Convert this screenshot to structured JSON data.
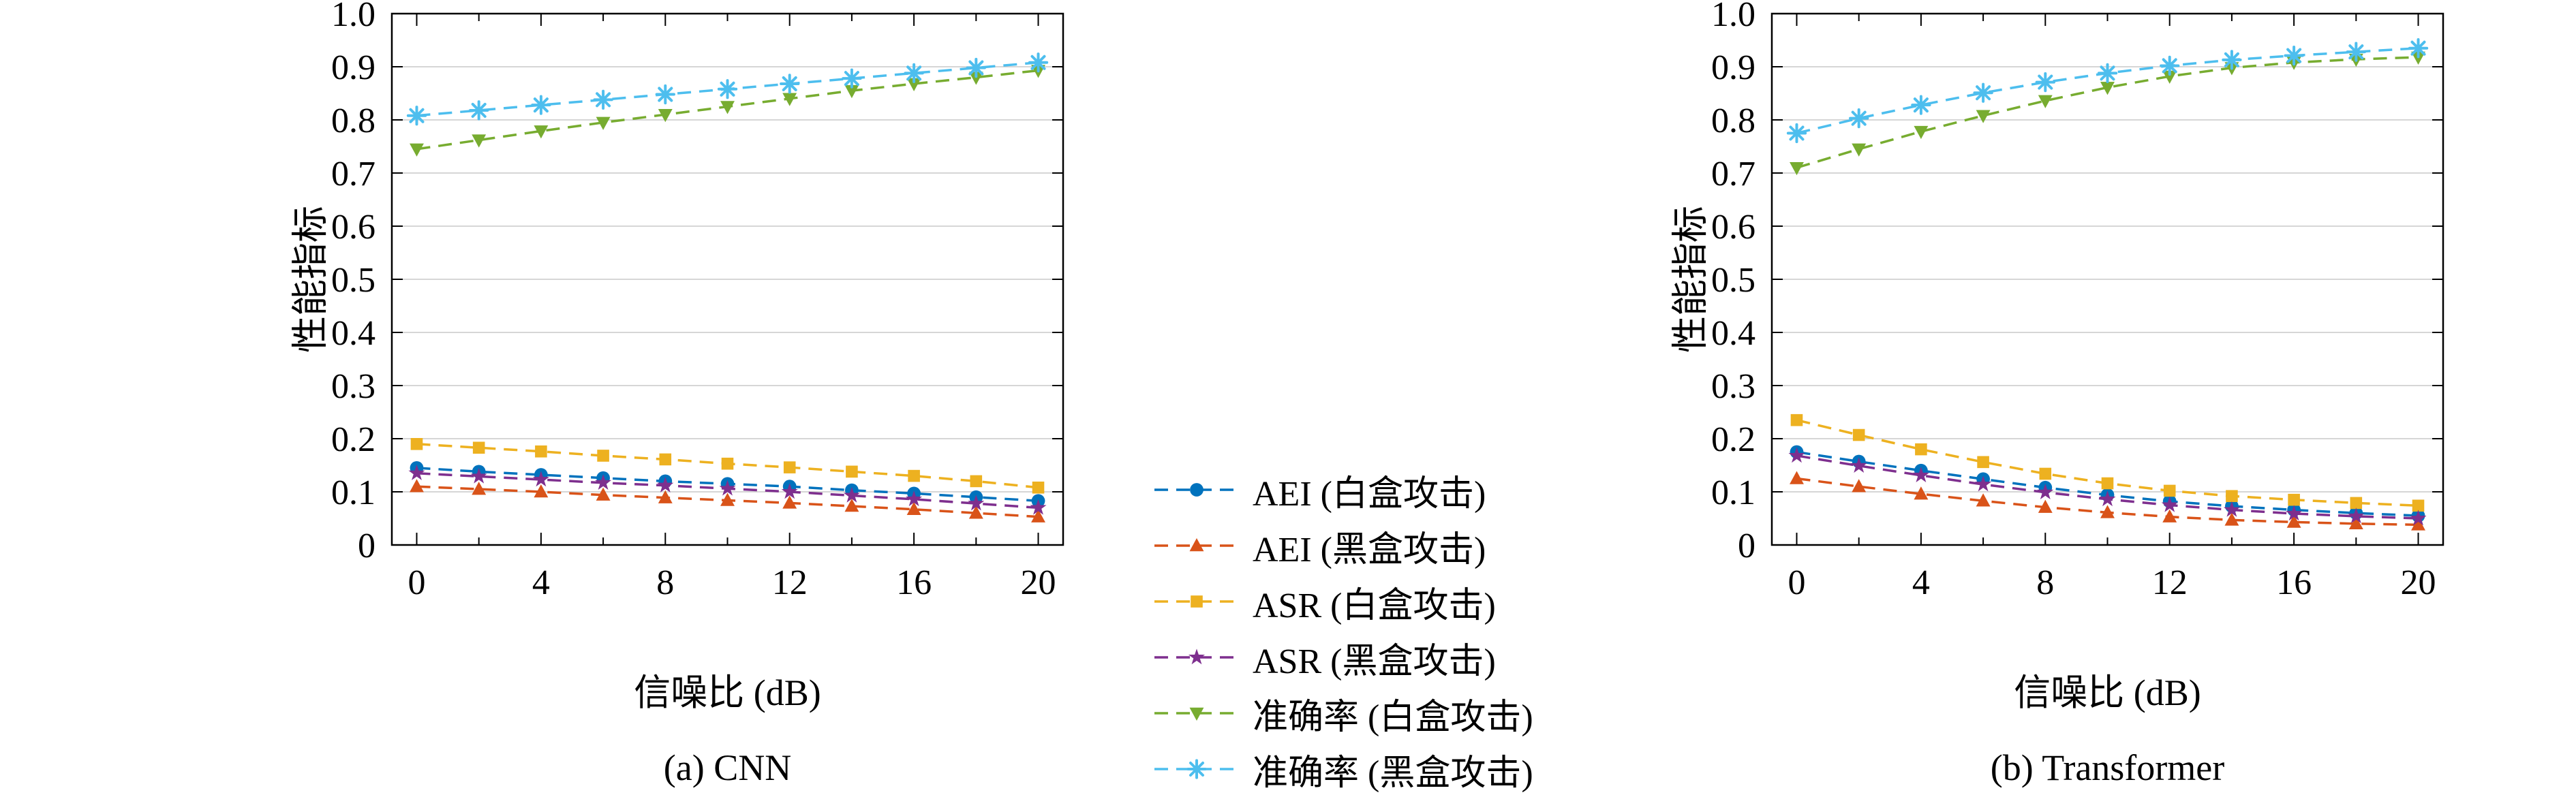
{
  "figure": {
    "ylabel": "性能指标",
    "xlabel": "信噪比 (dB)",
    "y_tick_labels": [
      "0",
      "0.1",
      "0.2",
      "0.3",
      "0.4",
      "0.5",
      "0.6",
      "0.7",
      "0.8",
      "0.9",
      "1.0"
    ],
    "x_tick_values": [
      0,
      4,
      8,
      12,
      16,
      20
    ],
    "x_minor_tick_values": [
      0,
      2,
      4,
      6,
      8,
      10,
      12,
      14,
      16,
      18,
      20
    ],
    "x_range": [
      -0.8,
      20.8
    ],
    "y_range": [
      0,
      1.0
    ],
    "grid_color": "#c8c8c8",
    "axis_color": "#000000"
  },
  "legend": {
    "items": [
      {
        "label": "AEI (白盒攻击)",
        "color": "#0072BD",
        "marker": "circle"
      },
      {
        "label": "AEI (黑盒攻击)",
        "color": "#D95319",
        "marker": "triangle-up"
      },
      {
        "label": "ASR (白盒攻击)",
        "color": "#EDB120",
        "marker": "square"
      },
      {
        "label": "ASR (黑盒攻击)",
        "color": "#7E2F8E",
        "marker": "star"
      },
      {
        "label": "准确率 (白盒攻击)",
        "color": "#77AC30",
        "marker": "triangle-down"
      },
      {
        "label": "准确率 (黑盒攻击)",
        "color": "#4DBEEE",
        "marker": "asterisk"
      }
    ]
  },
  "chart_data": [
    {
      "type": "line",
      "id": "a",
      "title": "(a) CNN",
      "xlabel": "信噪比 (dB)",
      "ylabel": "性能指标",
      "x_range": [
        0,
        20
      ],
      "y_range": [
        0,
        1.0
      ],
      "grid": "horizontal",
      "x": [
        0,
        2,
        4,
        6,
        8,
        10,
        12,
        14,
        16,
        18,
        20
      ],
      "series": [
        {
          "name": "AEI (白盒攻击)",
          "color": "#0072BD",
          "marker": "circle",
          "values": [
            0.145,
            0.138,
            0.132,
            0.126,
            0.12,
            0.115,
            0.11,
            0.103,
            0.097,
            0.09,
            0.083
          ]
        },
        {
          "name": "AEI (黑盒攻击)",
          "color": "#D95319",
          "marker": "triangle-up",
          "values": [
            0.11,
            0.105,
            0.1,
            0.094,
            0.089,
            0.084,
            0.079,
            0.073,
            0.067,
            0.06,
            0.053
          ]
        },
        {
          "name": "ASR (白盒攻击)",
          "color": "#EDB120",
          "marker": "square",
          "values": [
            0.19,
            0.183,
            0.176,
            0.168,
            0.161,
            0.153,
            0.146,
            0.138,
            0.13,
            0.12,
            0.108
          ]
        },
        {
          "name": "ASR (黑盒攻击)",
          "color": "#7E2F8E",
          "marker": "star",
          "values": [
            0.135,
            0.129,
            0.123,
            0.117,
            0.112,
            0.106,
            0.1,
            0.093,
            0.086,
            0.078,
            0.07
          ]
        },
        {
          "name": "准确率 (白盒攻击)",
          "color": "#77AC30",
          "marker": "triangle-down",
          "values": [
            0.745,
            0.762,
            0.779,
            0.795,
            0.81,
            0.825,
            0.84,
            0.855,
            0.868,
            0.88,
            0.893
          ]
        },
        {
          "name": "准确率 (黑盒攻击)",
          "color": "#4DBEEE",
          "marker": "asterisk",
          "values": [
            0.808,
            0.818,
            0.828,
            0.838,
            0.848,
            0.858,
            0.868,
            0.878,
            0.888,
            0.898,
            0.908
          ]
        }
      ]
    },
    {
      "type": "line",
      "id": "b",
      "title": "(b) Transformer",
      "xlabel": "信噪比 (dB)",
      "ylabel": "性能指标",
      "x_range": [
        0,
        20
      ],
      "y_range": [
        0,
        1.0
      ],
      "grid": "horizontal",
      "x": [
        0,
        2,
        4,
        6,
        8,
        10,
        12,
        14,
        16,
        18,
        20
      ],
      "series": [
        {
          "name": "AEI (白盒攻击)",
          "color": "#0072BD",
          "marker": "circle",
          "values": [
            0.175,
            0.157,
            0.14,
            0.124,
            0.108,
            0.094,
            0.082,
            0.073,
            0.066,
            0.06,
            0.055
          ]
        },
        {
          "name": "AEI (黑盒攻击)",
          "color": "#D95319",
          "marker": "triangle-up",
          "values": [
            0.125,
            0.11,
            0.096,
            0.083,
            0.071,
            0.061,
            0.053,
            0.047,
            0.043,
            0.04,
            0.038
          ]
        },
        {
          "name": "ASR (白盒攻击)",
          "color": "#EDB120",
          "marker": "square",
          "values": [
            0.235,
            0.207,
            0.18,
            0.156,
            0.134,
            0.116,
            0.102,
            0.092,
            0.085,
            0.079,
            0.074
          ]
        },
        {
          "name": "ASR (黑盒攻击)",
          "color": "#7E2F8E",
          "marker": "star",
          "values": [
            0.168,
            0.149,
            0.131,
            0.114,
            0.099,
            0.086,
            0.075,
            0.066,
            0.059,
            0.054,
            0.05
          ]
        },
        {
          "name": "准确率 (白盒攻击)",
          "color": "#77AC30",
          "marker": "triangle-down",
          "values": [
            0.71,
            0.745,
            0.778,
            0.808,
            0.836,
            0.861,
            0.882,
            0.898,
            0.908,
            0.914,
            0.918
          ]
        },
        {
          "name": "准确率 (黑盒攻击)",
          "color": "#4DBEEE",
          "marker": "asterisk",
          "values": [
            0.775,
            0.803,
            0.828,
            0.851,
            0.871,
            0.888,
            0.902,
            0.913,
            0.921,
            0.928,
            0.935
          ]
        }
      ]
    }
  ]
}
